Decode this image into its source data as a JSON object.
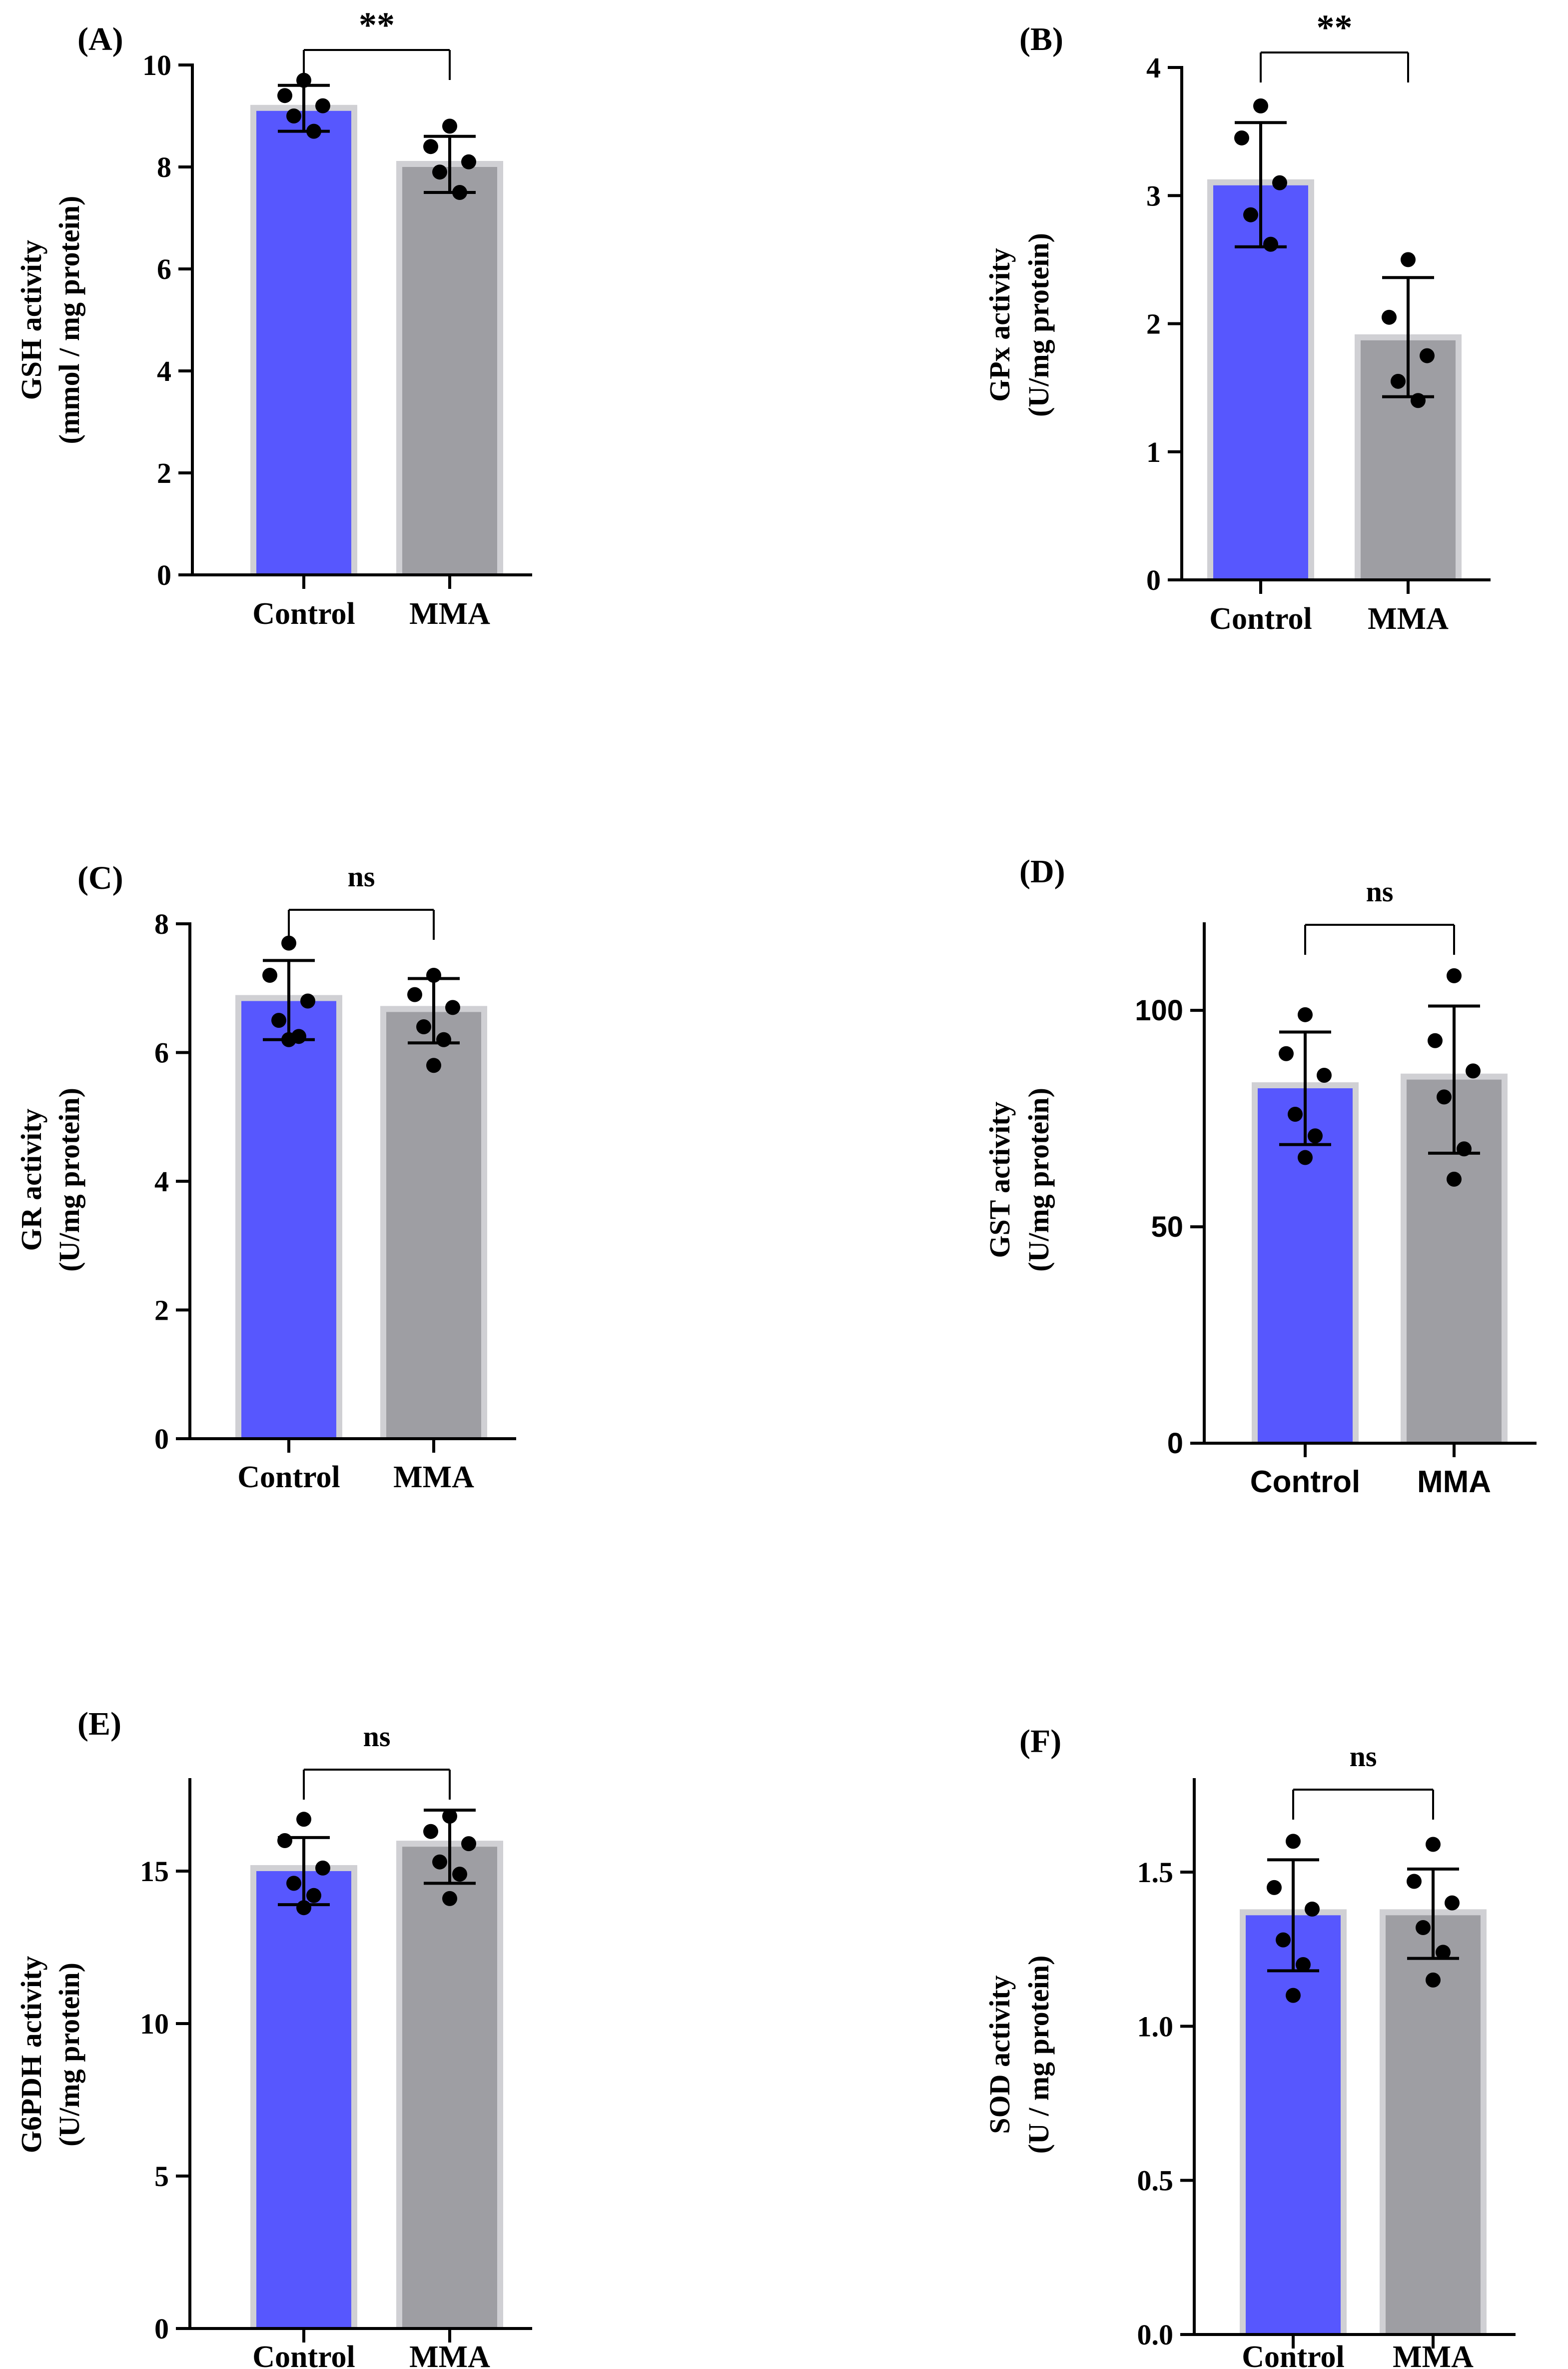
{
  "figure": {
    "colors": {
      "control": "#5757fe",
      "mma": "#9e9ea3",
      "bar_outline": "#d0d0d4",
      "ink": "#000000"
    }
  },
  "chart_data": [
    {
      "panel_label": "(A)",
      "type": "bar",
      "categories": [
        "Control",
        "MMA"
      ],
      "values": [
        9.1,
        8.0
      ],
      "error": [
        [
          8.7,
          9.6
        ],
        [
          7.5,
          8.6
        ]
      ],
      "points": [
        [
          9.7,
          9.4,
          9.2,
          9.0,
          8.7
        ],
        [
          8.8,
          8.4,
          8.1,
          7.9,
          7.5
        ]
      ],
      "ylabel_line1": "GSH activity",
      "ylabel_line2": "(mmol / mg protein)",
      "ylim": [
        0,
        10
      ],
      "yticks": [
        0,
        2,
        4,
        6,
        8,
        10
      ],
      "tick_labels": [
        "0",
        "2",
        "4",
        "6",
        "8",
        "10"
      ],
      "significance": "**"
    },
    {
      "panel_label": "(B)",
      "type": "bar",
      "categories": [
        "Control",
        "MMA"
      ],
      "values": [
        3.08,
        1.87
      ],
      "error": [
        [
          2.6,
          3.57
        ],
        [
          1.43,
          2.36
        ]
      ],
      "points": [
        [
          3.7,
          3.45,
          3.1,
          2.85,
          2.62
        ],
        [
          2.5,
          2.05,
          1.75,
          1.55,
          1.4
        ]
      ],
      "ylabel_line1": "GPx activity",
      "ylabel_line2": "(U/mg protein)",
      "ylim": [
        0,
        4
      ],
      "yticks": [
        0,
        1,
        2,
        3,
        4
      ],
      "tick_labels": [
        "0",
        "1",
        "2",
        "3",
        "4"
      ],
      "significance": "**"
    },
    {
      "panel_label": "(C)",
      "type": "bar",
      "categories": [
        "Control",
        "MMA"
      ],
      "values": [
        6.8,
        6.63
      ],
      "error": [
        [
          6.2,
          7.43
        ],
        [
          6.15,
          7.15
        ]
      ],
      "points": [
        [
          7.7,
          7.2,
          6.8,
          6.5,
          6.25,
          6.2
        ],
        [
          7.2,
          6.9,
          6.7,
          6.4,
          6.2,
          5.8
        ]
      ],
      "ylabel_line1": "GR activity",
      "ylabel_line2": "(U/mg protein)",
      "ylim": [
        0,
        8
      ],
      "yticks": [
        0,
        2,
        4,
        6,
        8
      ],
      "tick_labels": [
        "0",
        "2",
        "4",
        "6",
        "8"
      ],
      "significance": "ns"
    },
    {
      "panel_label": "(D)",
      "type": "bar",
      "categories": [
        "Control",
        "MMA"
      ],
      "values": [
        82,
        84
      ],
      "error": [
        [
          69,
          95
        ],
        [
          67,
          101
        ]
      ],
      "points": [
        [
          99,
          90,
          85,
          76,
          71,
          66
        ],
        [
          108,
          93,
          86,
          80,
          68,
          61
        ]
      ],
      "ylabel_line1": "GST activity",
      "ylabel_line2": "(U/mg protein)",
      "ylim": [
        0,
        120
      ],
      "yticks": [
        0,
        50,
        100
      ],
      "tick_labels": [
        "0",
        "50",
        "100"
      ],
      "significance": "ns"
    },
    {
      "panel_label": "(E)",
      "type": "bar",
      "categories": [
        "Control",
        "MMA"
      ],
      "values": [
        15.0,
        15.8
      ],
      "error": [
        [
          13.9,
          16.1
        ],
        [
          14.6,
          17.0
        ]
      ],
      "points": [
        [
          16.7,
          16.0,
          15.1,
          14.6,
          14.2,
          13.8
        ],
        [
          16.8,
          16.3,
          15.9,
          15.3,
          14.9,
          14.1
        ]
      ],
      "ylabel_line1": "G6PDH activity",
      "ylabel_line2": "(U/mg protein)",
      "ylim": [
        0,
        18
      ],
      "yticks": [
        0,
        5,
        10,
        15
      ],
      "tick_labels": [
        "0",
        "5",
        "10",
        "15"
      ],
      "significance": "ns"
    },
    {
      "panel_label": "(F)",
      "type": "bar",
      "categories": [
        "Control",
        "MMA"
      ],
      "values": [
        1.36,
        1.36
      ],
      "error": [
        [
          1.18,
          1.54
        ],
        [
          1.22,
          1.51
        ]
      ],
      "points": [
        [
          1.6,
          1.45,
          1.38,
          1.28,
          1.2,
          1.1
        ],
        [
          1.59,
          1.47,
          1.4,
          1.32,
          1.24,
          1.15
        ]
      ],
      "ylabel_line1": "SOD activity",
      "ylabel_line2": "(U / mg protein)",
      "ylim": [
        0,
        1.8
      ],
      "yticks": [
        0,
        0.5,
        1.0,
        1.5
      ],
      "tick_labels": [
        "0.0",
        "0.5",
        "1.0",
        "1.5"
      ],
      "significance": "ns"
    }
  ]
}
